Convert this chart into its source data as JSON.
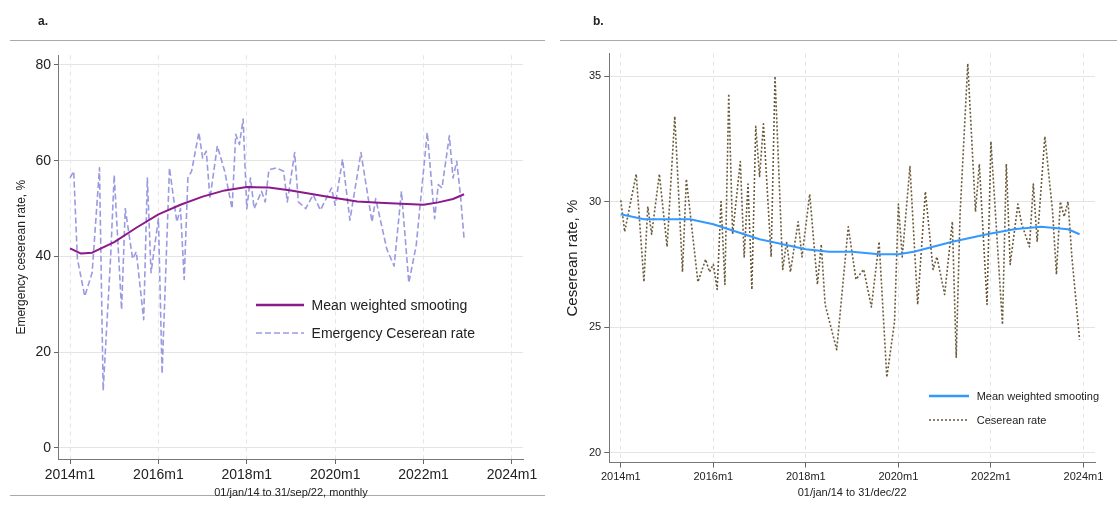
{
  "chart_data": [
    {
      "type": "line",
      "title": "a.",
      "xlabel": "01/jan/14 to 31/sep/22, monthly",
      "ylabel": "Emergency ceserean rate, %",
      "xlim": [
        "2013-10",
        "2024-04"
      ],
      "ylim": [
        -2.3,
        82
      ],
      "xticks": [
        {
          "value": "2014-01",
          "label": "2014m1"
        },
        {
          "value": "2016-01",
          "label": "2016m1"
        },
        {
          "value": "2018-01",
          "label": "2018m1"
        },
        {
          "value": "2020-01",
          "label": "2020m1"
        },
        {
          "value": "2022-01",
          "label": "2022m1"
        },
        {
          "value": "2024-01",
          "label": "2024m1"
        }
      ],
      "yticks": [
        0,
        20,
        40,
        60,
        80
      ],
      "grid": true,
      "legend": "right",
      "marker": "none",
      "series": [
        {
          "name": "Mean weighted smooting",
          "color": "#8b1a8b",
          "line_style": "solid",
          "x": [
            "2014-01",
            "2014-04",
            "2014-07",
            "2015-01",
            "2015-07",
            "2016-01",
            "2016-07",
            "2017-01",
            "2017-07",
            "2018-01",
            "2018-07",
            "2019-01",
            "2019-07",
            "2020-01",
            "2020-07",
            "2021-01",
            "2021-07",
            "2022-01",
            "2022-05",
            "2022-09",
            "2022-12"
          ],
          "values": [
            41.7,
            40.6,
            40.8,
            43,
            46,
            48.8,
            50.8,
            52.5,
            53.8,
            54.5,
            54.4,
            53.8,
            53,
            52.2,
            51.5,
            51.2,
            51,
            50.8,
            51.3,
            52,
            53
          ]
        },
        {
          "name": "Emergency Ceserean rate",
          "color": "#9a9ae0",
          "line_style": "dashed",
          "x": [
            "2014-01",
            "2014-02",
            "2014-03",
            "2014-05",
            "2014-07",
            "2014-09",
            "2014-10",
            "2014-12",
            "2015-01",
            "2015-03",
            "2015-04",
            "2015-06",
            "2015-07",
            "2015-09",
            "2015-10",
            "2015-11",
            "2016-01",
            "2016-02",
            "2016-04",
            "2016-06",
            "2016-07",
            "2016-08",
            "2016-09",
            "2016-10",
            "2016-12",
            "2017-01",
            "2017-02",
            "2017-03",
            "2017-05",
            "2017-07",
            "2017-09",
            "2017-10",
            "2017-11",
            "2017-12",
            "2018-01",
            "2018-02",
            "2018-03",
            "2018-05",
            "2018-06",
            "2018-07",
            "2018-09",
            "2018-11",
            "2018-12",
            "2019-02",
            "2019-03",
            "2019-05",
            "2019-07",
            "2019-09",
            "2019-12",
            "2020-01",
            "2020-03",
            "2020-05",
            "2020-08",
            "2020-11",
            "2020-12",
            "2021-03",
            "2021-05",
            "2021-07",
            "2021-09",
            "2021-11",
            "2022-02",
            "2022-04",
            "2022-05",
            "2022-06",
            "2022-08",
            "2022-09",
            "2022-10",
            "2022-11",
            "2022-12"
          ],
          "values": [
            56.4,
            57.8,
            39.5,
            31.7,
            36.6,
            58.5,
            12,
            39.5,
            57,
            28.9,
            50,
            39.5,
            41,
            26.8,
            56.4,
            36.6,
            47.9,
            15.5,
            58.5,
            47.2,
            50,
            35.2,
            56.4,
            57.8,
            65.9,
            60.6,
            62,
            52.1,
            63.1,
            57.8,
            50,
            65.5,
            63.4,
            68.7,
            50,
            56.4,
            50,
            53.6,
            51.4,
            58.1,
            58.5,
            57.8,
            51.4,
            61.7,
            51.4,
            50,
            52.9,
            49.7,
            54.3,
            50.7,
            60.3,
            47.6,
            61.7,
            47.2,
            52.1,
            41.6,
            38,
            53.6,
            34.5,
            42.3,
            65.9,
            47.9,
            55,
            54.3,
            65.2,
            56.4,
            59.9,
            52.9,
            43.7
          ]
        }
      ]
    },
    {
      "type": "line",
      "title": "b.",
      "xlabel": "01/jan/14 to 31/dec/22",
      "ylabel": "Ceserean rate, %",
      "xlim": [
        "2013-10",
        "2024-04"
      ],
      "ylim": [
        19.6,
        35.9
      ],
      "xticks": [
        {
          "value": "2014-01",
          "label": "2014m1"
        },
        {
          "value": "2016-01",
          "label": "2016m1"
        },
        {
          "value": "2018-01",
          "label": "2018m1"
        },
        {
          "value": "2020-01",
          "label": "2020m1"
        },
        {
          "value": "2022-01",
          "label": "2022m1"
        },
        {
          "value": "2024-01",
          "label": "2024m1"
        }
      ],
      "yticks": [
        20,
        25,
        30,
        35
      ],
      "grid": true,
      "legend": "bottom right",
      "marker": "none",
      "series": [
        {
          "name": "Mean weighted smooting",
          "color": "#3399ff",
          "line_style": "solid",
          "x": [
            "2014-01",
            "2014-07",
            "2015-01",
            "2015-07",
            "2016-01",
            "2016-07",
            "2017-01",
            "2017-07",
            "2018-01",
            "2018-07",
            "2019-01",
            "2019-08",
            "2020-01",
            "2020-05",
            "2021-03",
            "2021-12",
            "2022-07",
            "2023-02",
            "2023-09",
            "2023-12"
          ],
          "values": [
            29.5,
            29.3,
            29.3,
            29.3,
            29.1,
            28.8,
            28.5,
            28.3,
            28.1,
            28,
            28,
            27.9,
            27.9,
            28,
            28.4,
            28.7,
            28.9,
            29,
            28.9,
            28.7
          ]
        },
        {
          "name": "Ceserean rate",
          "color": "#6b5a3a",
          "line_style": "dotted",
          "x": [
            "2014-01",
            "2014-02",
            "2014-05",
            "2014-07",
            "2014-08",
            "2014-09",
            "2014-11",
            "2015-01",
            "2015-03",
            "2015-05",
            "2015-06",
            "2015-09",
            "2015-11",
            "2015-12",
            "2016-01",
            "2016-02",
            "2016-03",
            "2016-04",
            "2016-05",
            "2016-06",
            "2016-08",
            "2016-09",
            "2016-10",
            "2016-11",
            "2016-12",
            "2017-01",
            "2017-02",
            "2017-04",
            "2017-05",
            "2017-07",
            "2017-08",
            "2017-09",
            "2017-11",
            "2017-12",
            "2018-02",
            "2018-04",
            "2018-05",
            "2018-06",
            "2018-09",
            "2018-12",
            "2019-02",
            "2019-04",
            "2019-06",
            "2019-08",
            "2019-10",
            "2019-12",
            "2020-01",
            "2020-02",
            "2020-04",
            "2020-06",
            "2020-08",
            "2020-10",
            "2020-11",
            "2021-01",
            "2021-03",
            "2021-04",
            "2021-05",
            "2021-07",
            "2021-09",
            "2021-10",
            "2021-12",
            "2022-01",
            "2022-04",
            "2022-05",
            "2022-06",
            "2022-08",
            "2022-09",
            "2022-11",
            "2022-12",
            "2023-01",
            "2023-03",
            "2023-05",
            "2023-06",
            "2023-07",
            "2023-08",
            "2023-09",
            "2023-10",
            "2023-12"
          ],
          "values": [
            30.05,
            28.8,
            31.1,
            26.8,
            29.8,
            28.7,
            31.1,
            28.2,
            33.4,
            27.2,
            30.9,
            26.8,
            27.7,
            27.2,
            27.5,
            26.5,
            30,
            26.7,
            34.3,
            28.7,
            31.6,
            27.8,
            30.7,
            26.5,
            33,
            31,
            33.1,
            27.8,
            35,
            27.3,
            28.4,
            27.2,
            29.2,
            27.8,
            30.3,
            26.7,
            28.3,
            25.9,
            24.1,
            29,
            26.9,
            27.3,
            25.8,
            28.4,
            23,
            25.2,
            29.9,
            27.8,
            31.4,
            25.9,
            30.4,
            27.3,
            27.8,
            26.3,
            29.2,
            23.8,
            29.5,
            35.5,
            29.6,
            31.5,
            25.9,
            32.4,
            25.1,
            31.5,
            27.5,
            29.9,
            29.1,
            28.2,
            30.7,
            28.4,
            32.6,
            29.6,
            27.1,
            30,
            29.4,
            30,
            27.8,
            24.5
          ]
        }
      ]
    }
  ]
}
